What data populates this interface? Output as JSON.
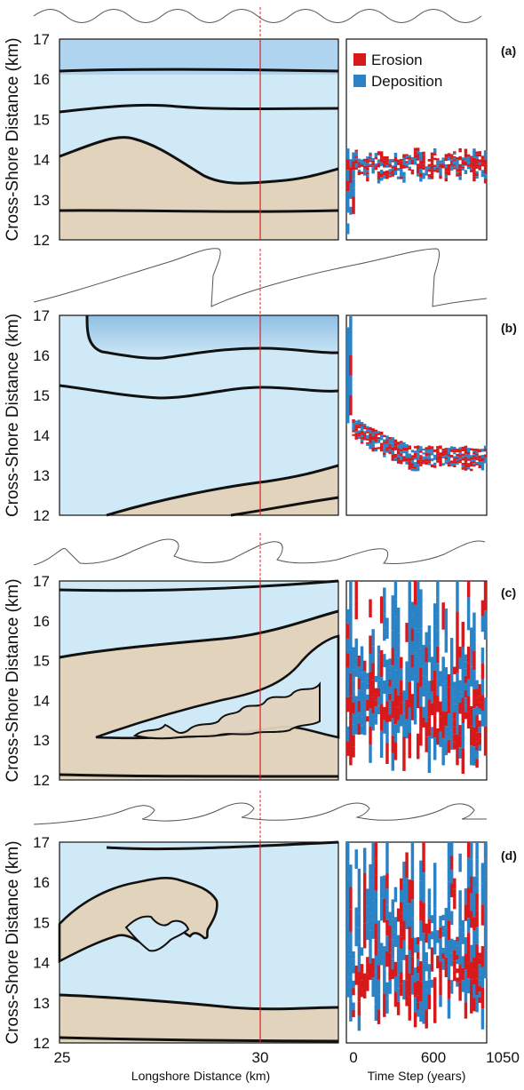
{
  "chart_data": {
    "type": "multi-panel",
    "y_axis_label": "Cross-Shore Distance (km)",
    "y_ticks": [
      "17",
      "16",
      "15",
      "14",
      "13",
      "12"
    ],
    "ylim": [
      12,
      17
    ],
    "x_axis_left_label": "Longshore Distance (km)",
    "x_axis_left_ticks": [
      "25",
      "30"
    ],
    "x_axis_right_label": "Time Step (years)",
    "x_axis_right_ticks": [
      "0",
      "600",
      "1050"
    ],
    "legend": {
      "erosion_label": "Erosion",
      "deposition_label": "Deposition"
    },
    "colors": {
      "erosion": "#d7191c",
      "deposition": "#2b83c6",
      "water": "#cfe9f7",
      "deep_water": "#8fbfe3",
      "sand": "#e2d3bd",
      "marker_line": "#e02020"
    },
    "panels": [
      {
        "label": "(a)",
        "wave_shape": "sinusoidal",
        "shoreline_range_km": [
          12.9,
          14.3
        ]
      },
      {
        "label": "(b)",
        "wave_shape": "breaking-steep",
        "shoreline_range_km": [
          13.2,
          14.3
        ]
      },
      {
        "label": "(c)",
        "wave_shape": "chaotic",
        "shoreline_range_km": [
          12.1,
          17.0
        ]
      },
      {
        "label": "(d)",
        "wave_shape": "plunging",
        "shoreline_range_km": [
          12.3,
          17.0
        ]
      }
    ]
  }
}
